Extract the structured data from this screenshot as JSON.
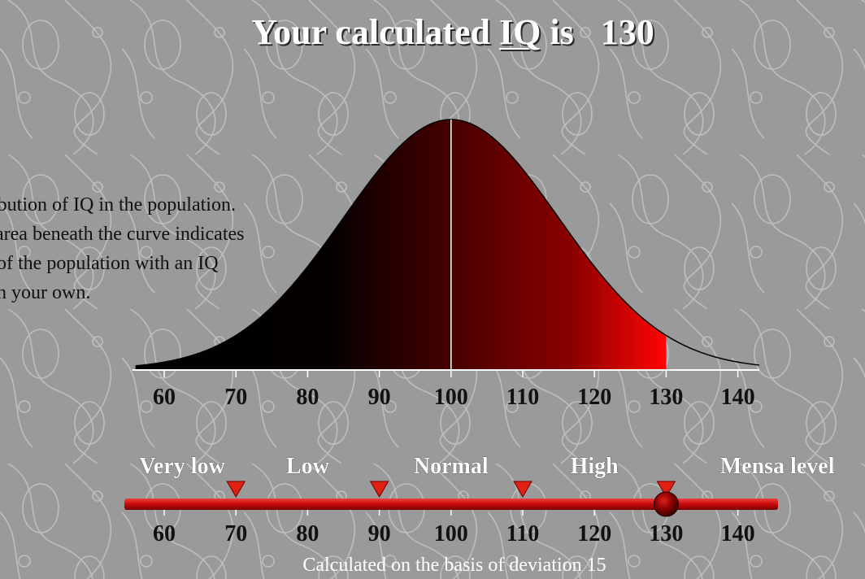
{
  "title": {
    "prefix": "Your calculated ",
    "abbr": "IQ",
    "suffix": " is",
    "score": "130"
  },
  "explanation_lines": [
    "ibution of IQ in the population.",
    "area beneath the curve indicates",
    "of the population with an IQ",
    "n your own."
  ],
  "chart_data": {
    "type": "area",
    "description_of_distribution": {
      "mean": 100,
      "std_dev": 15
    },
    "x_ticks": [
      60,
      70,
      80,
      90,
      100,
      110,
      120,
      130,
      140
    ],
    "xlim": [
      56,
      143
    ],
    "highlight_upto": 130,
    "mean_marker": 100,
    "scale": {
      "categories": [
        "Very low",
        "Low",
        "Normal",
        "High",
        "Mensa level"
      ],
      "boundaries": [
        70,
        90,
        110,
        130
      ],
      "marker_value": 130,
      "ticks": [
        60,
        70,
        80,
        90,
        100,
        110,
        120,
        130,
        140
      ]
    }
  },
  "colors": {
    "background": "#9a9a9a",
    "curve_dark": "#000000",
    "curve_mid": "#6a0000",
    "curve_bright": "#ff0000",
    "slider_bar": "#cc1111",
    "boundary_marker": "#e02010",
    "knob": "#8a0000"
  },
  "footnote": "Calculated on the basis of deviation 15"
}
